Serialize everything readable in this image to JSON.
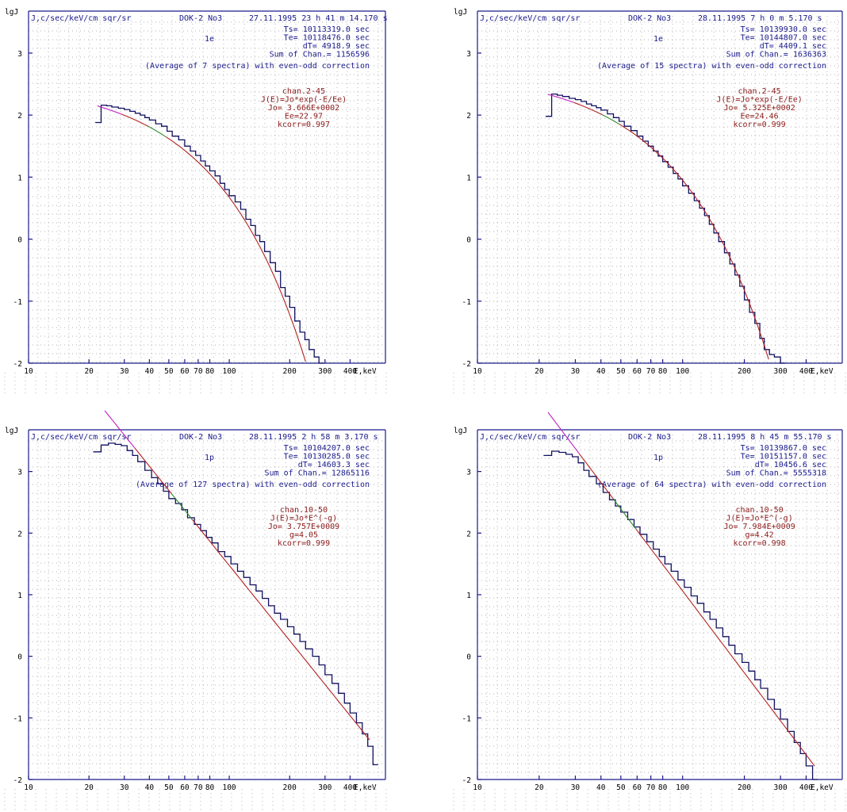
{
  "colors": {
    "axis": "#1a1a8c",
    "text": "#1a1a8c",
    "fit_text": "#8b1a1a",
    "step": "#101060",
    "fit": "#b22222",
    "fit_alt1": "#c020c0",
    "fit_alt2": "#2e8b2e",
    "grid": "#9a9a9a"
  },
  "chart_data": [
    {
      "type": "line",
      "title": "J,c/sec/keV/cm sqr/sr",
      "ylabel": "lgJ",
      "xlabel": "E,keV",
      "xscale": "log",
      "xlim": [
        10,
        600
      ],
      "ylim": [
        -2,
        3.6
      ],
      "x_ticks": [
        "10",
        "20",
        "30",
        "40",
        "50",
        "60",
        "70",
        "80",
        "100",
        "200",
        "300",
        "400"
      ],
      "y_ticks": [
        "-2",
        "-1",
        "0",
        "1",
        "2",
        "3"
      ],
      "header": {
        "device": "DOK-2 No3",
        "datetime": "27.11.1995 23 h 41 m 14.170 s"
      },
      "particle": "1e",
      "info": [
        "Ts= 10113319.0 sec",
        "Te= 10118476.0 sec",
        "dT= 4918.9 sec",
        "Sum of Chan.= 1156596"
      ],
      "average_note": "(Average of 7 spectra)  with even-odd correction",
      "fit": {
        "lines": [
          "chan.2-45",
          "J(E)=Jo*exp(-E/Ee)",
          "Jo= 3.666E+0002",
          "Ee=22.97",
          "kcorr=0.997"
        ],
        "model": "exp",
        "Jo": 366.6,
        "Ee": 22.97,
        "range": [
          22,
          250
        ]
      },
      "series": [
        {
          "x": [
            21.5,
            23,
            24.5,
            26,
            28,
            30,
            32,
            34,
            36,
            38,
            40,
            43,
            46,
            49,
            52,
            56,
            60,
            64,
            68,
            72,
            76,
            80,
            85,
            90,
            95,
            100,
            107,
            114,
            121,
            128,
            135,
            142,
            150,
            160,
            170,
            180,
            190,
            200,
            212,
            225,
            238,
            250,
            265,
            280
          ],
          "y": [
            1.88,
            2.16,
            2.15,
            2.13,
            2.11,
            2.09,
            2.06,
            2.03,
            2.0,
            1.96,
            1.92,
            1.86,
            1.82,
            1.74,
            1.66,
            1.6,
            1.5,
            1.42,
            1.35,
            1.26,
            1.18,
            1.1,
            1.02,
            0.9,
            0.8,
            0.7,
            0.6,
            0.48,
            0.32,
            0.22,
            0.06,
            -0.04,
            -0.2,
            -0.38,
            -0.52,
            -0.78,
            -0.92,
            -1.1,
            -1.32,
            -1.5,
            -1.62,
            -1.78,
            -1.9,
            -2.0
          ]
        }
      ]
    },
    {
      "type": "line",
      "title": "J,c/sec/keV/cm sqr/sr",
      "ylabel": "lgJ",
      "xlabel": "E,keV",
      "xscale": "log",
      "xlim": [
        10,
        600
      ],
      "ylim": [
        -2,
        3.6
      ],
      "x_ticks": [
        "10",
        "20",
        "30",
        "40",
        "50",
        "60",
        "70",
        "80",
        "100",
        "200",
        "300",
        "400"
      ],
      "y_ticks": [
        "-2",
        "-1",
        "0",
        "1",
        "2",
        "3"
      ],
      "header": {
        "device": "DOK-2 No3",
        "datetime": "28.11.1995  7 h  0 m  5.170 s"
      },
      "particle": "1e",
      "info": [
        "Ts= 10139930.0 sec",
        "Te= 10144807.0 sec",
        "dT= 4409.1 sec",
        "Sum of Chan.= 1636363"
      ],
      "average_note": "(Average of 15 spectra)  with even-odd correction",
      "fit": {
        "lines": [
          "chan.2-45",
          "J(E)=Jo*exp(-E/Ee)",
          "Jo= 5.325E+0002",
          "Ee=24.46",
          "kcorr=0.999"
        ],
        "model": "exp",
        "Jo": 532.5,
        "Ee": 24.46,
        "range": [
          22,
          280
        ]
      },
      "series": [
        {
          "x": [
            21.5,
            23,
            24.5,
            26,
            28,
            30,
            32,
            34,
            36,
            38,
            40,
            43,
            46,
            49,
            52,
            56,
            60,
            64,
            68,
            72,
            76,
            80,
            85,
            90,
            95,
            100,
            107,
            114,
            121,
            128,
            135,
            142,
            150,
            160,
            170,
            180,
            190,
            200,
            212,
            225,
            238,
            250,
            265,
            280,
            300
          ],
          "y": [
            1.98,
            2.34,
            2.32,
            2.3,
            2.27,
            2.25,
            2.22,
            2.18,
            2.15,
            2.12,
            2.08,
            2.02,
            1.96,
            1.9,
            1.82,
            1.75,
            1.66,
            1.58,
            1.5,
            1.42,
            1.34,
            1.25,
            1.16,
            1.06,
            0.97,
            0.86,
            0.74,
            0.62,
            0.5,
            0.38,
            0.24,
            0.1,
            -0.04,
            -0.22,
            -0.4,
            -0.58,
            -0.76,
            -0.98,
            -1.18,
            -1.36,
            -1.6,
            -1.78,
            -1.86,
            -1.9,
            -2.0
          ]
        }
      ]
    },
    {
      "type": "line",
      "title": "J,c/sec/keV/cm sqr/sr",
      "ylabel": "lgJ",
      "xlabel": "E,keV",
      "xscale": "log",
      "xlim": [
        10,
        600
      ],
      "ylim": [
        -2,
        3.6
      ],
      "x_ticks": [
        "10",
        "20",
        "30",
        "40",
        "50",
        "60",
        "70",
        "80",
        "100",
        "200",
        "300",
        "400"
      ],
      "y_ticks": [
        "-2",
        "-1",
        "0",
        "1",
        "2",
        "3"
      ],
      "header": {
        "device": "DOK-2 No3",
        "datetime": "28.11.1995  2 h 58 m  3.170 s"
      },
      "particle": "1p",
      "info": [
        "Ts= 10104207.0 sec",
        "Te= 10130285.0 sec",
        "dT= 14603.3 sec",
        "Sum of Chan.= 12865116"
      ],
      "average_note": "(Average of 127 spectra)  with even-odd correction",
      "fit": {
        "lines": [
          "chan.10-50",
          "J(E)=Jo*E^(-g)",
          "Jo= 3.757E+0009",
          "g=4.05",
          "kcorr=0.999"
        ],
        "model": "power",
        "Jo": 3757000000.0,
        "g": 4.05,
        "range": [
          21,
          500
        ]
      },
      "series": [
        {
          "x": [
            21,
            23,
            25,
            27,
            29,
            31,
            33,
            35,
            38,
            41,
            44,
            47,
            50,
            54,
            58,
            62,
            67,
            72,
            77,
            82,
            88,
            95,
            102,
            110,
            118,
            127,
            136,
            146,
            157,
            168,
            180,
            195,
            210,
            225,
            240,
            260,
            280,
            300,
            325,
            350,
            375,
            400,
            430,
            460,
            490,
            520
          ],
          "y": [
            3.32,
            3.43,
            3.46,
            3.44,
            3.42,
            3.34,
            3.26,
            3.16,
            3.02,
            2.9,
            2.8,
            2.68,
            2.56,
            2.48,
            2.38,
            2.25,
            2.14,
            2.04,
            1.93,
            1.84,
            1.7,
            1.62,
            1.5,
            1.38,
            1.28,
            1.16,
            1.06,
            0.94,
            0.82,
            0.7,
            0.6,
            0.48,
            0.36,
            0.24,
            0.12,
            0.0,
            -0.14,
            -0.3,
            -0.44,
            -0.6,
            -0.76,
            -0.92,
            -1.08,
            -1.26,
            -1.46,
            -1.76
          ]
        }
      ]
    },
    {
      "type": "line",
      "title": "J,c/sec/keV/cm sqr/sr",
      "ylabel": "lgJ",
      "xlabel": "E,keV",
      "xscale": "log",
      "xlim": [
        10,
        600
      ],
      "ylim": [
        -2,
        3.6
      ],
      "x_ticks": [
        "10",
        "20",
        "30",
        "40",
        "50",
        "60",
        "70",
        "80",
        "100",
        "200",
        "300",
        "400"
      ],
      "y_ticks": [
        "-2",
        "-1",
        "0",
        "1",
        "2",
        "3"
      ],
      "header": {
        "device": "DOK-2 No3",
        "datetime": "28.11.1995  8 h 45 m 55.170 s"
      },
      "particle": "1p",
      "info": [
        "Ts= 10139867.0 sec",
        "Te= 10151157.0 sec",
        "dT= 10456.6 sec",
        "Sum of Chan.= 5555318"
      ],
      "average_note": "(Average of 64 spectra)  with even-odd correction",
      "fit": {
        "lines": [
          "chan.10-50",
          "J(E)=Jo*E^(-g)",
          "Jo= 7.984E+0009",
          "g=4.42",
          "kcorr=0.998"
        ],
        "model": "power",
        "Jo": 7984000000.0,
        "g": 4.42,
        "range": [
          21,
          440
        ]
      },
      "series": [
        {
          "x": [
            21,
            23,
            25,
            27,
            29,
            31,
            33,
            35,
            38,
            41,
            44,
            47,
            50,
            54,
            58,
            62,
            67,
            72,
            77,
            82,
            88,
            95,
            102,
            110,
            118,
            127,
            136,
            146,
            157,
            168,
            180,
            195,
            210,
            225,
            240,
            260,
            280,
            300,
            325,
            350,
            375,
            400,
            430
          ],
          "y": [
            3.26,
            3.33,
            3.31,
            3.28,
            3.24,
            3.14,
            3.02,
            2.92,
            2.8,
            2.66,
            2.54,
            2.44,
            2.34,
            2.22,
            2.1,
            1.98,
            1.86,
            1.74,
            1.62,
            1.5,
            1.38,
            1.24,
            1.12,
            0.98,
            0.86,
            0.72,
            0.6,
            0.46,
            0.32,
            0.18,
            0.04,
            -0.1,
            -0.24,
            -0.38,
            -0.52,
            -0.7,
            -0.86,
            -1.02,
            -1.22,
            -1.4,
            -1.58,
            -1.78,
            -2.0
          ]
        }
      ]
    }
  ]
}
